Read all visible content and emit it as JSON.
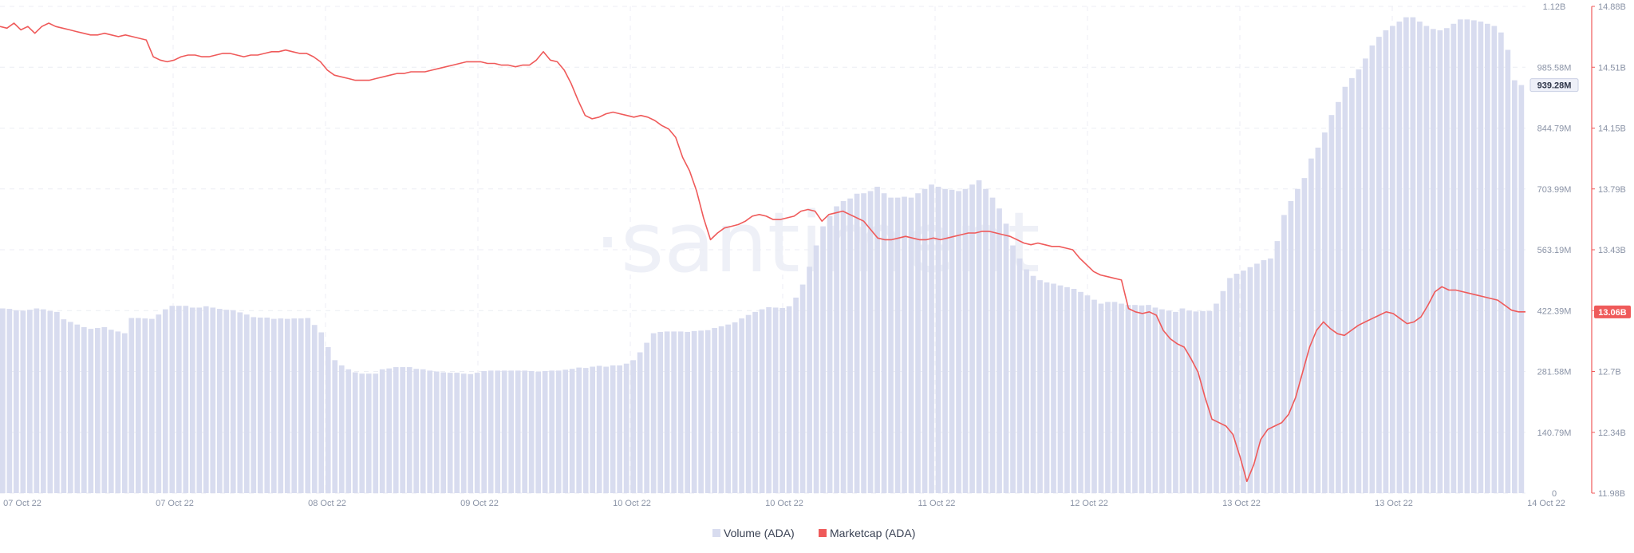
{
  "watermark": "·santiment",
  "chart_data": {
    "type": "bar+line",
    "x_ticks": [
      "07 Oct 22",
      "07 Oct 22",
      "08 Oct 22",
      "09 Oct 22",
      "10 Oct 22",
      "10 Oct 22",
      "11 Oct 22",
      "12 Oct 22",
      "13 Oct 22",
      "13 Oct 22",
      "14 Oct 22"
    ],
    "left_axis": {
      "range": [
        0,
        1120000000
      ],
      "ticks": [
        "0",
        "140.79M",
        "281.58M",
        "422.39M",
        "563.19M",
        "703.99M",
        "844.79M",
        "985.58M",
        "1.12B"
      ]
    },
    "right_axis": {
      "range": [
        11980000000,
        14880000000
      ],
      "ticks": [
        "11.98B",
        "12.34B",
        "12.7B",
        "13.06B",
        "13.43B",
        "13.79B",
        "14.15B",
        "14.51B",
        "14.88B"
      ]
    },
    "grid": true,
    "legend_position": "bottom-center",
    "series": [
      {
        "name": "Volume (ADA)",
        "kind": "bar",
        "color": "#d8dcef",
        "last_value_label": "939.28M",
        "values_M": [
          425,
          424,
          421,
          420,
          422,
          425,
          423,
          419,
          417,
          400,
          394,
          388,
          382,
          378,
          380,
          382,
          376,
          372,
          368,
          403,
          403,
          402,
          401,
          411,
          423,
          431,
          431,
          431,
          427,
          427,
          430,
          427,
          424,
          422,
          421,
          416,
          411,
          405,
          404,
          404,
          401,
          402,
          401,
          402,
          402,
          403,
          387,
          370,
          336,
          306,
          294,
          285,
          278,
          275,
          275,
          275,
          285,
          287,
          290,
          290,
          290,
          286,
          285,
          282,
          280,
          278,
          277,
          277,
          275,
          274,
          277,
          281,
          282,
          282,
          282,
          282,
          282,
          282,
          281,
          279,
          281,
          282,
          282,
          284,
          286,
          289,
          288,
          291,
          293,
          291,
          294,
          294,
          298,
          306,
          324,
          346,
          368,
          371,
          372,
          372,
          372,
          371,
          373,
          374,
          375,
          380,
          384,
          388,
          393,
          402,
          410,
          417,
          423,
          428,
          427,
          426,
          430,
          450,
          480,
          521,
          570,
          614,
          638,
          660,
          672,
          678,
          689,
          690,
          695,
          705,
          690,
          680,
          680,
          682,
          680,
          690,
          700,
          710,
          705,
          700,
          698,
          695,
          700,
          710,
          720,
          700,
          680,
          655,
          620,
          570,
          540,
          515,
          500,
          490,
          485,
          482,
          478,
          474,
          470,
          463,
          455,
          445,
          436,
          440,
          440,
          436,
          433,
          433,
          432,
          433,
          427,
          423,
          420,
          417,
          425,
          420,
          418,
          419,
          419,
          436,
          465,
          495,
          505,
          512,
          520,
          528,
          536,
          540,
          580,
          640,
          672,
          700,
          725,
          770,
          795,
          830,
          870,
          900,
          935,
          955,
          975,
          1000,
          1030,
          1050,
          1065,
          1075,
          1085,
          1095,
          1095,
          1085,
          1075,
          1068,
          1065,
          1070,
          1080,
          1090,
          1090,
          1088,
          1085,
          1080,
          1075,
          1060,
          1020,
          950,
          939
        ]
      },
      {
        "name": "Marketcap (ADA)",
        "kind": "line",
        "color": "#ef5a5a",
        "last_value_label": "13.06B",
        "values_B": [
          14.76,
          14.75,
          14.78,
          14.74,
          14.76,
          14.72,
          14.76,
          14.78,
          14.76,
          14.75,
          14.74,
          14.73,
          14.72,
          14.71,
          14.71,
          14.72,
          14.71,
          14.7,
          14.71,
          14.7,
          14.69,
          14.68,
          14.58,
          14.56,
          14.55,
          14.56,
          14.58,
          14.59,
          14.59,
          14.58,
          14.58,
          14.59,
          14.6,
          14.6,
          14.59,
          14.58,
          14.59,
          14.59,
          14.6,
          14.61,
          14.61,
          14.62,
          14.61,
          14.6,
          14.6,
          14.58,
          14.55,
          14.5,
          14.47,
          14.46,
          14.45,
          14.44,
          14.44,
          14.44,
          14.45,
          14.46,
          14.47,
          14.48,
          14.48,
          14.49,
          14.49,
          14.49,
          14.5,
          14.51,
          14.52,
          14.53,
          14.54,
          14.55,
          14.55,
          14.55,
          14.54,
          14.54,
          14.53,
          14.53,
          14.52,
          14.53,
          14.53,
          14.56,
          14.61,
          14.56,
          14.55,
          14.5,
          14.42,
          14.32,
          14.23,
          14.21,
          14.22,
          14.24,
          14.25,
          14.24,
          14.23,
          14.22,
          14.23,
          14.22,
          14.2,
          14.17,
          14.15,
          14.1,
          13.98,
          13.9,
          13.78,
          13.62,
          13.49,
          13.53,
          13.56,
          13.57,
          13.58,
          13.6,
          13.63,
          13.64,
          13.63,
          13.61,
          13.61,
          13.62,
          13.63,
          13.66,
          13.67,
          13.66,
          13.6,
          13.64,
          13.65,
          13.66,
          13.64,
          13.62,
          13.6,
          13.55,
          13.5,
          13.49,
          13.49,
          13.5,
          13.51,
          13.5,
          13.49,
          13.49,
          13.5,
          13.49,
          13.5,
          13.51,
          13.52,
          13.53,
          13.53,
          13.54,
          13.54,
          13.53,
          13.52,
          13.51,
          13.49,
          13.47,
          13.46,
          13.47,
          13.46,
          13.45,
          13.45,
          13.44,
          13.43,
          13.38,
          13.34,
          13.3,
          13.28,
          13.27,
          13.26,
          13.25,
          13.08,
          13.06,
          13.05,
          13.06,
          13.04,
          12.95,
          12.9,
          12.87,
          12.85,
          12.78,
          12.7,
          12.55,
          12.42,
          12.4,
          12.38,
          12.33,
          12.2,
          12.05,
          12.15,
          12.3,
          12.36,
          12.38,
          12.4,
          12.45,
          12.55,
          12.7,
          12.85,
          12.95,
          13.0,
          12.96,
          12.93,
          12.92,
          12.95,
          12.98,
          13.0,
          13.02,
          13.04,
          13.06,
          13.05,
          13.02,
          12.99,
          13.0,
          13.03,
          13.1,
          13.18,
          13.21,
          13.19,
          13.19,
          13.18,
          13.17,
          13.16,
          13.15,
          13.14,
          13.13,
          13.1,
          13.07,
          13.06,
          13.06
        ]
      }
    ]
  }
}
